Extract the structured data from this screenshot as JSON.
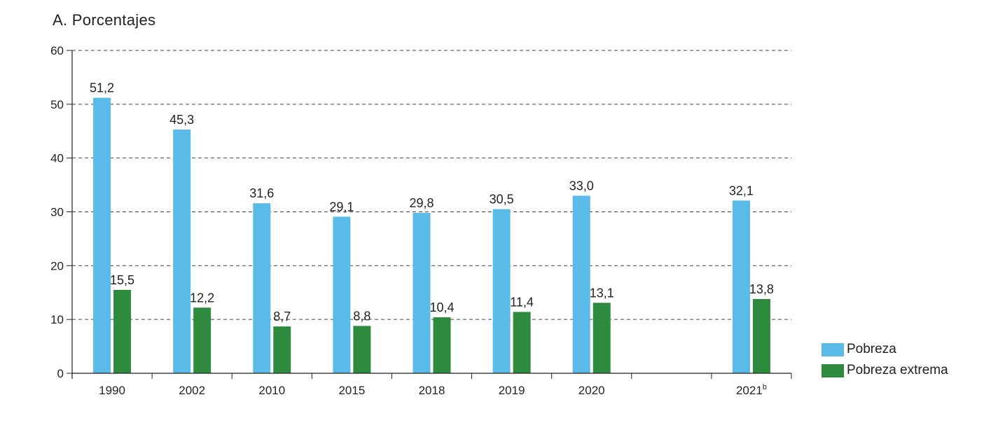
{
  "chart_data": {
    "type": "bar",
    "title": "A. Porcentajes",
    "categories": [
      "1990",
      "2002",
      "2010",
      "2015",
      "2018",
      "2019",
      "2020",
      "2021"
    ],
    "category_superscripts": [
      "",
      "",
      "",
      "",
      "",
      "",
      "",
      "b"
    ],
    "series": [
      {
        "name": "Pobreza",
        "color": "#5bbbe8",
        "values": [
          51.2,
          45.3,
          31.6,
          29.1,
          29.8,
          30.5,
          33.0,
          32.1
        ],
        "labels": [
          "51,2",
          "45,3",
          "31,6",
          "29,1",
          "29,8",
          "30,5",
          "33,0",
          "32,1"
        ]
      },
      {
        "name": "Pobreza extrema",
        "color": "#2e8b3d",
        "values": [
          15.5,
          12.2,
          8.7,
          8.8,
          10.4,
          11.4,
          13.1,
          13.8
        ],
        "labels": [
          "15,5",
          "12,2",
          "8,7",
          "8,8",
          "10,4",
          "11,4",
          "13,1",
          "13,8"
        ]
      }
    ],
    "ylim": [
      0,
      60
    ],
    "yticks": [
      0,
      10,
      20,
      30,
      40,
      50,
      60
    ],
    "grid": true,
    "legend": "right"
  }
}
